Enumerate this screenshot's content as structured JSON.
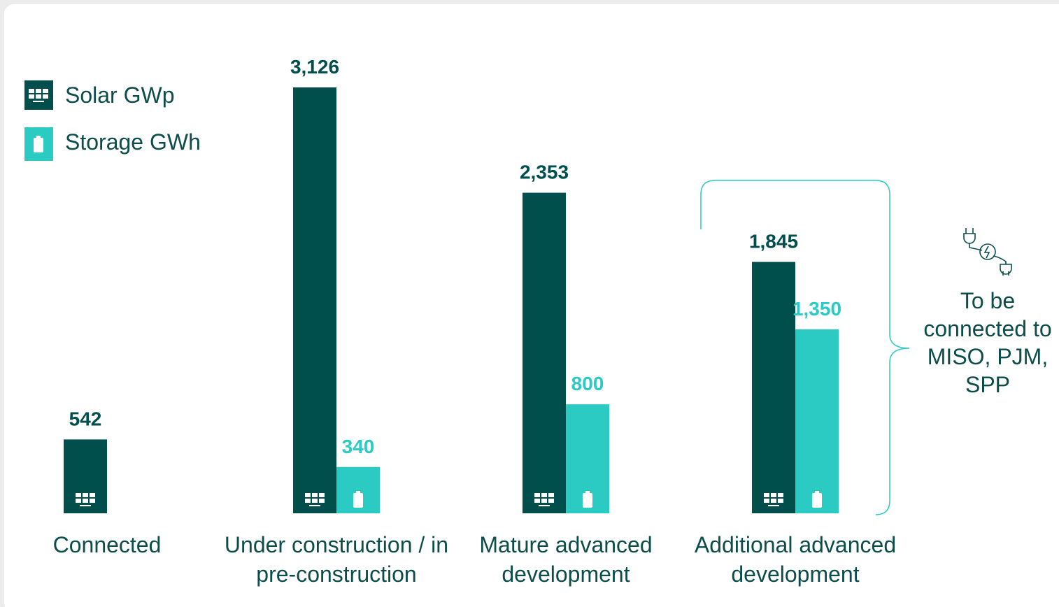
{
  "chart_data": {
    "type": "bar",
    "categories": [
      "Connected",
      "Under construction / in pre-construction",
      "Mature advanced development",
      "Additional advanced development"
    ],
    "series": [
      {
        "name": "Solar GWp",
        "color": "#004f4c",
        "values": [
          542,
          3126,
          2353,
          1845
        ],
        "value_labels": [
          "542",
          "3,126",
          "2,353",
          "1,845"
        ]
      },
      {
        "name": "Storage GWh",
        "color": "#2bcbc3",
        "values": [
          null,
          340,
          800,
          1350
        ],
        "value_labels": [
          null,
          "340",
          "800",
          "1,350"
        ]
      }
    ],
    "annotation": "To be connected to MISO, PJM, SPP"
  }
}
